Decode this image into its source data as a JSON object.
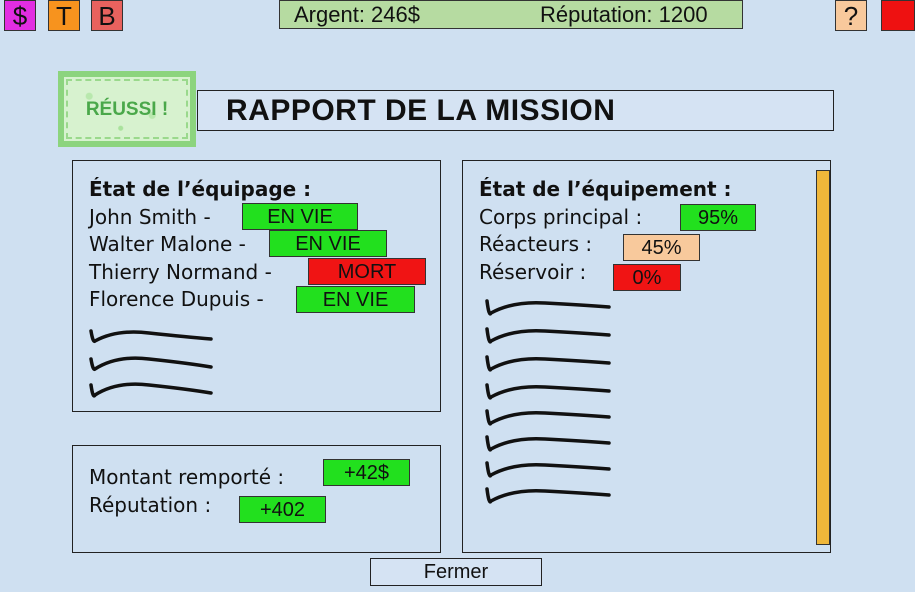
{
  "topbar": {
    "money_btn": "$",
    "t_btn": "T",
    "b_btn": "B",
    "help_btn": "?",
    "argent": "Argent: 246$",
    "reputation": "Réputation: 1200"
  },
  "stamp": "RÉUSSI !",
  "title": "RAPPORT DE LA MISSION",
  "crew": {
    "heading": "État de l’équipage :",
    "members": [
      {
        "name": "John Smith -",
        "status": "EN VIE",
        "status_color": "#22e01e"
      },
      {
        "name": "Walter Malone -",
        "status": "EN VIE",
        "status_color": "#22e01e"
      },
      {
        "name": "Thierry Normand -",
        "status": "MORT",
        "status_color": "#f01414"
      },
      {
        "name": "Florence Dupuis -",
        "status": "EN VIE",
        "status_color": "#22e01e"
      }
    ]
  },
  "rewards": {
    "amount_label": "Montant remporté :",
    "amount_value": "+42$",
    "rep_label": "Réputation :",
    "rep_value": "+402"
  },
  "equipment": {
    "heading": "État de l’équipement :",
    "items": [
      {
        "label": "Corps principal :",
        "value": "95%",
        "color": "#22e01e"
      },
      {
        "label": "Réacteurs :",
        "value": "45%",
        "color": "#f8c99c"
      },
      {
        "label": "Réservoir :",
        "value": "0%",
        "color": "#f01414"
      }
    ]
  },
  "colors": {
    "money_btn": "#e22de2",
    "t_btn": "#f7931e",
    "b_btn": "#e8625e",
    "help_btn": "#f8c99c",
    "red_btn": "#ee1111",
    "stats_bg": "#b6dba1",
    "scrollbar": "#f0b73a"
  },
  "close_label": "Fermer"
}
